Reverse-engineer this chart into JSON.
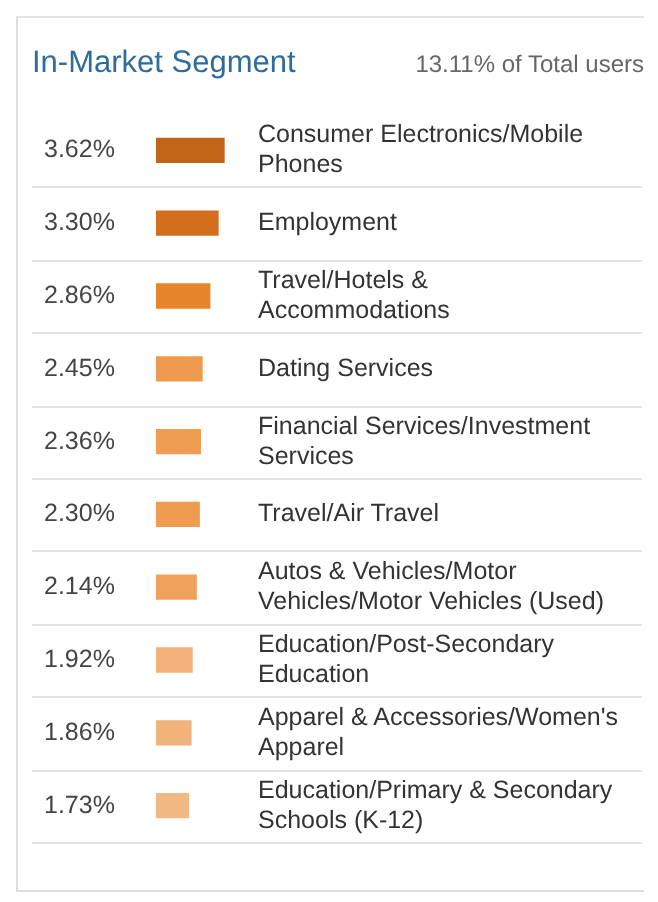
{
  "chart_data": {
    "type": "bar",
    "orientation": "horizontal",
    "title": "In-Market Segment",
    "subtitle": "13.11% of Total users",
    "categories": [
      "Consumer Electronics/Mobile Phones",
      "Employment",
      "Travel/Hotels & Accommodations",
      "Dating Services",
      "Financial Services/Investment Services",
      "Travel/Air Travel",
      "Autos & Vehicles/Motor Vehicles/Motor Vehicles (Used)",
      "Education/Post-Secondary Education",
      "Apparel & Accessories/Women's Apparel",
      "Education/Primary & Secondary Schools (K-12)"
    ],
    "values": [
      3.62,
      3.3,
      2.86,
      2.45,
      2.36,
      2.3,
      2.14,
      1.92,
      1.86,
      1.73
    ],
    "value_labels": [
      "3.62%",
      "3.30%",
      "2.86%",
      "2.45%",
      "2.36%",
      "2.30%",
      "2.14%",
      "1.92%",
      "1.86%",
      "1.73%"
    ],
    "colors": [
      "#c0651a",
      "#d36f1c",
      "#e8852b",
      "#ee9a4f",
      "#ef9d52",
      "#ef9b50",
      "#f0a25d",
      "#f2b07a",
      "#f2b27c",
      "#f3b985"
    ],
    "grid": "y",
    "legend": false
  }
}
